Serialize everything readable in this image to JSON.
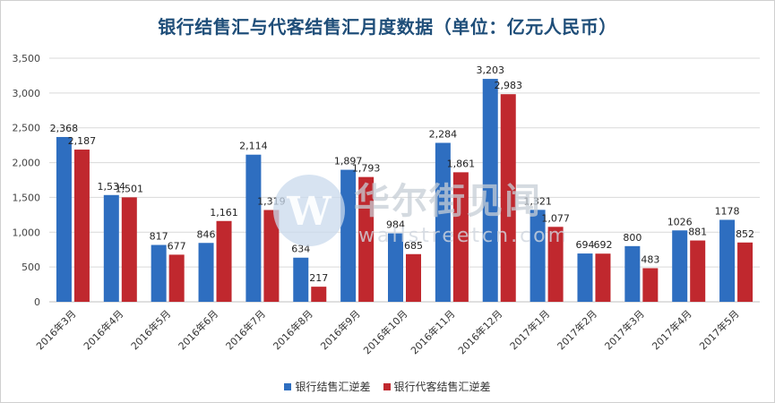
{
  "chart_data": {
    "type": "bar",
    "title": "银行结售汇与代客结售汇月度数据（单位：亿元人民币）",
    "categories": [
      "2016年3月",
      "2016年4月",
      "2016年5月",
      "2016年6月",
      "2016年7月",
      "2016年8月",
      "2016年9月",
      "2016年10月",
      "2016年11月",
      "2016年12月",
      "2017年1月",
      "2017年2月",
      "2017年3月",
      "2017年4月",
      "2017年5月"
    ],
    "series": [
      {
        "name": "银行结售汇逆差",
        "color": "#2e6ec0",
        "values": [
          2368,
          1534,
          817,
          846,
          2114,
          634,
          1897,
          984,
          2284,
          3203,
          1321,
          694,
          800,
          1026,
          1178
        ],
        "labels": [
          "2,368",
          "1,534",
          "817",
          "846",
          "2,114",
          "634",
          "1,897",
          "984",
          "2,284",
          "3,203",
          "1,321",
          "694",
          "800",
          "1026",
          "1178"
        ]
      },
      {
        "name": "银行代客结售汇逆差",
        "color": "#c0282e",
        "values": [
          2187,
          1501,
          677,
          1161,
          1319,
          217,
          1793,
          685,
          1861,
          2983,
          1077,
          692,
          483,
          881,
          852
        ],
        "labels": [
          "2,187",
          "1,501",
          "677",
          "1,161",
          "1,319",
          "217",
          "1,793",
          "685",
          "1,861",
          "2,983",
          "1,077",
          "692",
          "483",
          "881",
          "852"
        ]
      }
    ],
    "ylim": [
      0,
      3500
    ],
    "yticks": [
      0,
      500,
      1000,
      1500,
      2000,
      2500,
      3000,
      3500
    ],
    "ytick_labels": [
      "0",
      "500",
      "1,000",
      "1,500",
      "2,000",
      "2,500",
      "3,000",
      "3,500"
    ],
    "grid": true,
    "legend_position": "bottom"
  },
  "watermark": {
    "text": "华尔街见闻",
    "subtext": "wallstreetcn.com",
    "logo_letter": "W"
  }
}
